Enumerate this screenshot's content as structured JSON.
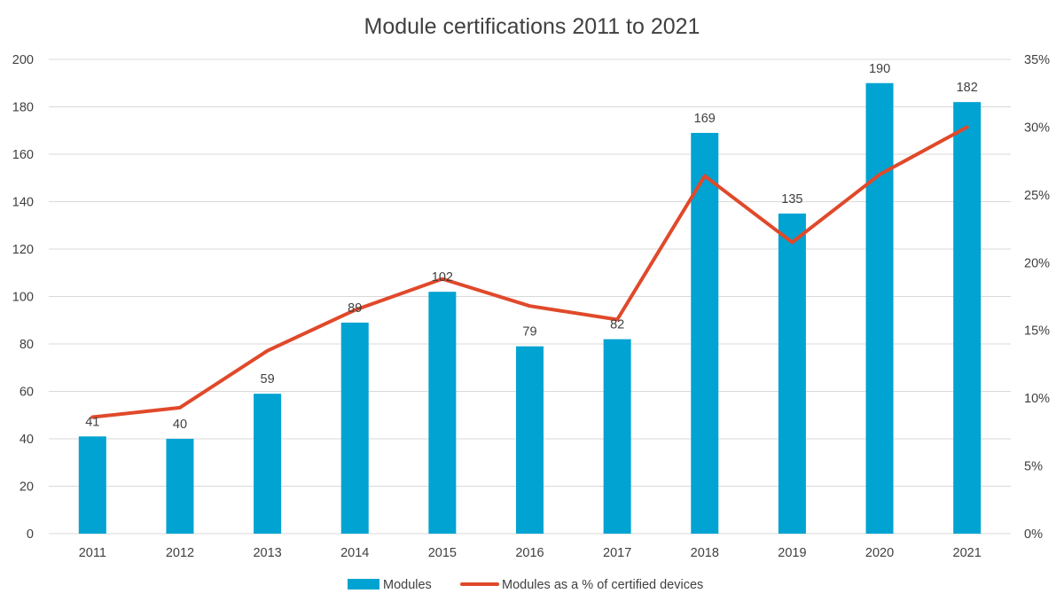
{
  "chart_data": {
    "type": "bar",
    "title": "Module certifications 2011 to 2021",
    "categories": [
      "2011",
      "2012",
      "2013",
      "2014",
      "2015",
      "2016",
      "2017",
      "2018",
      "2019",
      "2020",
      "2021"
    ],
    "series": [
      {
        "name": "Modules",
        "type": "bar",
        "axis": "left",
        "color": "#00a3d1",
        "values": [
          41,
          40,
          59,
          89,
          102,
          79,
          82,
          169,
          135,
          190,
          182
        ],
        "data_labels": [
          "41",
          "40",
          "59",
          "89",
          "102",
          "79",
          "82",
          "169",
          "135",
          "190",
          "182"
        ]
      },
      {
        "name": "Modules as a % of certified devices",
        "type": "line",
        "axis": "right",
        "color": "#e0492a",
        "values": [
          8.6,
          9.3,
          13.5,
          16.5,
          18.8,
          16.8,
          15.8,
          26.4,
          21.5,
          26.5,
          30.0
        ]
      }
    ],
    "y_left": {
      "min": 0,
      "max": 200,
      "step": 20,
      "tick_labels": [
        "0",
        "20",
        "40",
        "60",
        "80",
        "100",
        "120",
        "140",
        "160",
        "180",
        "200"
      ]
    },
    "y_right": {
      "min": 0,
      "max": 35,
      "step": 5,
      "tick_labels": [
        "0%",
        "5%",
        "10%",
        "15%",
        "20%",
        "25%",
        "30%",
        "35%"
      ]
    },
    "grid": true,
    "legend_position": "bottom"
  }
}
